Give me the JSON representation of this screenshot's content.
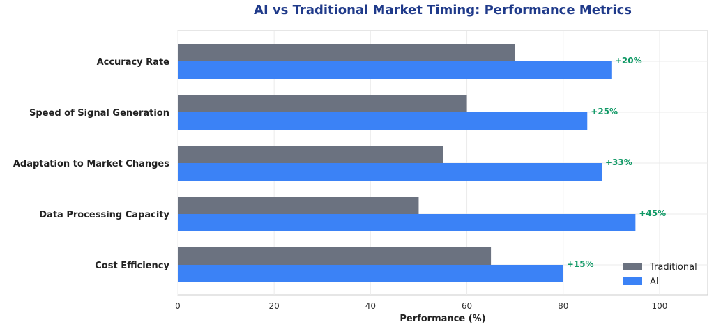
{
  "chart_data": {
    "type": "bar",
    "orientation": "horizontal",
    "title": "AI vs Traditional Market Timing: Performance Metrics",
    "xlabel": "Performance (%)",
    "ylabel": "",
    "xlim": [
      0,
      110
    ],
    "xticks": [
      0,
      20,
      40,
      60,
      80,
      100
    ],
    "grid": true,
    "legend_position": "bottom-right",
    "categories": [
      "Accuracy Rate",
      "Speed of Signal Generation",
      "Adaptation to Market Changes",
      "Data Processing Capacity",
      "Cost Efficiency"
    ],
    "series": [
      {
        "name": "Traditional",
        "color": "#6b7280",
        "values": [
          70,
          60,
          55,
          50,
          65
        ]
      },
      {
        "name": "AI",
        "color": "#3b82f6",
        "values": [
          90,
          85,
          88,
          95,
          80
        ]
      }
    ],
    "annotations": [
      "+20%",
      "+25%",
      "+33%",
      "+45%",
      "+15%"
    ],
    "annotation_color": "#119966"
  }
}
